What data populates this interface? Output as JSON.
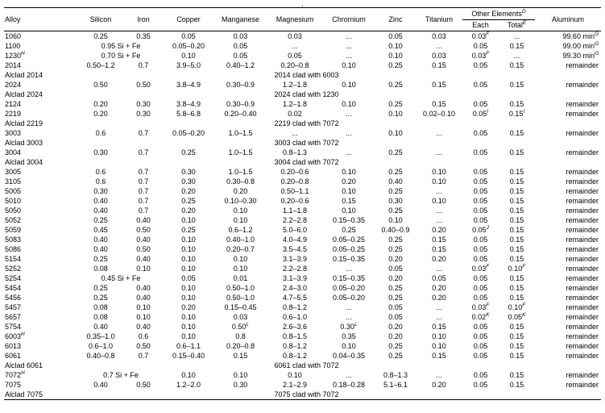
{
  "table": {
    "caption_fragment": ".",
    "headers": {
      "alloy": "Alloy",
      "silicon": "Silicon",
      "iron": "Iron",
      "copper": "Copper",
      "manganese": "Manganese",
      "magnesium": "Magnesium",
      "chromium": "Chromium",
      "zinc": "Zinc",
      "titanium": "Titanium",
      "other_elements": "Other Elements",
      "other_elements_sup": "D",
      "each": "Each",
      "total": "Total",
      "total_sup": "E",
      "aluminum": "Aluminum"
    },
    "rows": [
      {
        "alloy": "1060",
        "values": [
          "0.25",
          "0.35",
          "0.05",
          "0.03",
          "0.03",
          "...",
          "0.05",
          "0.03",
          "0.03^F",
          "..."
        ],
        "al": "99.60 min^G"
      },
      {
        "alloy": "1100",
        "sife": "0.95 Si + Fe",
        "values": [
          "0.05–0.20",
          "0.05",
          "...",
          "...",
          "0.10",
          "...",
          "0.05",
          "0.15"
        ],
        "al": "99.00 min^G"
      },
      {
        "alloy": "1230^H",
        "sife": "0.70 Si + Fe",
        "values": [
          "0.10",
          "0.05",
          "0.05",
          "...",
          "0.10",
          "0.03",
          "0.03^F",
          "..."
        ],
        "al": "99.30 min^G"
      },
      {
        "alloy": "2014",
        "values": [
          "0.50–1.2",
          "0.7",
          "3.9–5.0",
          "0.40–1.2",
          "0.20–0.8",
          "0.10",
          "0.25",
          "0.15",
          "0.05",
          "0.15"
        ],
        "al": "remainder"
      },
      {
        "alloy": "Alclad 2014",
        "clad": "2014 clad with 6003",
        "al": ""
      },
      {
        "alloy": "2024",
        "values": [
          "0.50",
          "0.50",
          "3.8–4.9",
          "0.30–0.9",
          "1.2–1.8",
          "0.10",
          "0.25",
          "0.15",
          "0.05",
          "0.15"
        ],
        "al": "remainder"
      },
      {
        "alloy": "Alclad 2024",
        "clad": "2024 clad with 1230",
        "al": ""
      },
      {
        "alloy": "2124",
        "values": [
          "0.20",
          "0.30",
          "3.8–4.9",
          "0.30–0.9",
          "1.2–1.8",
          "0.10",
          "0.25",
          "0.15",
          "0.05",
          "0.15"
        ],
        "al": "remainder"
      },
      {
        "alloy": "2219",
        "values": [
          "0.20",
          "0.30",
          "5.8–6.8",
          "0.20–0.40",
          "0.02",
          "...",
          "0.10",
          "0.02–0.10",
          "0.05^I",
          "0.15^I"
        ],
        "al": "remainder"
      },
      {
        "alloy": "Alclad 2219",
        "clad": "2219 clad with 7072",
        "al": ""
      },
      {
        "alloy": "3003",
        "values": [
          "0.6",
          "0.7",
          "0.05–0.20",
          "1.0–1.5",
          "...",
          "...",
          "0.10",
          "...",
          "0.05",
          "0.15"
        ],
        "al": "remainder"
      },
      {
        "alloy": "Alclad 3003",
        "clad": "3003 clad with 7072",
        "al": ""
      },
      {
        "alloy": "3004",
        "values": [
          "0.30",
          "0.7",
          "0.25",
          "1.0–1.5",
          "0.8–1.3",
          "...",
          "0.25",
          "...",
          "0.05",
          "0.15"
        ],
        "al": "remainder"
      },
      {
        "alloy": "Alclad 3004",
        "clad": "3004 clad with 7072",
        "al": ""
      },
      {
        "alloy": "3005",
        "values": [
          "0.6",
          "0.7",
          "0.30",
          "1.0–1.5",
          "0.20–0.6",
          "0.10",
          "0.25",
          "0.10",
          "0.05",
          "0.15"
        ],
        "al": "remainder"
      },
      {
        "alloy": "3105",
        "values": [
          "0.6",
          "0.7",
          "0.30",
          "0.30–0.8",
          "0.20–0.8",
          "0.20",
          "0.40",
          "0.10",
          "0.05",
          "0.15"
        ],
        "al": "remainder"
      },
      {
        "alloy": "5005",
        "values": [
          "0.30",
          "0.7",
          "0.20",
          "0.20",
          "0.50–1.1",
          "0.10",
          "0.25",
          "...",
          "0.05",
          "0.15"
        ],
        "al": "remainder"
      },
      {
        "alloy": "5010",
        "values": [
          "0.40",
          "0.7",
          "0.25",
          "0.10–0.30",
          "0.20–0.6",
          "0.15",
          "0.30",
          "0.10",
          "0.05",
          "0.15"
        ],
        "al": "remainder"
      },
      {
        "alloy": "5050",
        "values": [
          "0.40",
          "0.7",
          "0.20",
          "0.10",
          "1.1–1.8",
          "0.10",
          "0.25",
          "...",
          "0.05",
          "0.15"
        ],
        "al": "remainder"
      },
      {
        "alloy": "5052",
        "values": [
          "0.25",
          "0.40",
          "0.10",
          "0.10",
          "2.2–2.8",
          "0.15–0.35",
          "0.10",
          "...",
          "0.05",
          "0.15"
        ],
        "al": "remainder"
      },
      {
        "alloy": "5059",
        "values": [
          "0.45",
          "0.50",
          "0.25",
          "0.6–1.2",
          "5.0–6.0",
          "0.25",
          "0.40–0.9",
          "0.20",
          "0.05^J",
          "0.15"
        ],
        "al": "remainder"
      },
      {
        "alloy": "5083",
        "values": [
          "0.40",
          "0.40",
          "0.10",
          "0.40–1.0",
          "4.0–4.9",
          "0.05–0.25",
          "0.25",
          "0.15",
          "0.05",
          "0.15"
        ],
        "al": "remainder"
      },
      {
        "alloy": "5086",
        "values": [
          "0.40",
          "0.50",
          "0.10",
          "0.20–0.7",
          "3.5–4.5",
          "0.05–0.25",
          "0.25",
          "0.15",
          "0.05",
          "0.15"
        ],
        "al": "remainder"
      },
      {
        "alloy": "5154",
        "values": [
          "0.25",
          "0.40",
          "0.10",
          "0.10",
          "3.1–3.9",
          "0.15–0.35",
          "0.20",
          "0.20",
          "0.05",
          "0.15"
        ],
        "al": "remainder"
      },
      {
        "alloy": "5252",
        "values": [
          "0.08",
          "0.10",
          "0.10",
          "0.10",
          "2.2–2.8",
          "...",
          "0.05",
          "...",
          "0.03^F",
          "0.10^F"
        ],
        "al": "remainder"
      },
      {
        "alloy": "5254",
        "sife": "0.45 Si + Fe",
        "values": [
          "0.05",
          "0.01",
          "3.1–3.9",
          "0.15–0.35",
          "0.20",
          "0.05",
          "0.05",
          "0.15"
        ],
        "al": "remainder"
      },
      {
        "alloy": "5454",
        "values": [
          "0.25",
          "0.40",
          "0.10",
          "0.50–1.0",
          "2.4–3.0",
          "0.05–0.20",
          "0.25",
          "0.20",
          "0.05",
          "0.15"
        ],
        "al": "remainder"
      },
      {
        "alloy": "5456",
        "values": [
          "0.25",
          "0.40",
          "0.10",
          "0.50–1.0",
          "4.7–5.5",
          "0.05–0.20",
          "0.25",
          "0.20",
          "0.05",
          "0.15"
        ],
        "al": "remainder"
      },
      {
        "alloy": "5457",
        "values": [
          "0.08",
          "0.10",
          "0.20",
          "0.15–0.45",
          "0.8–1.2",
          "...",
          "0.05",
          "...",
          "0.03^F",
          "0.10^F"
        ],
        "al": "remainder"
      },
      {
        "alloy": "5657",
        "values": [
          "0.08",
          "0.10",
          "0.10",
          "0.03",
          "0.6–1.0",
          "...",
          "0.05",
          "...",
          "0.02^K",
          "0.05^K"
        ],
        "al": "remainder"
      },
      {
        "alloy": "5754",
        "values": [
          "0.40",
          "0.40",
          "0.10",
          "0.50^L",
          "2.6–3.6",
          "0.30^L",
          "0.20",
          "0.15",
          "0.05",
          "0.15"
        ],
        "al": "remainder"
      },
      {
        "alloy": "6003^H",
        "values": [
          "0.35–1.0",
          "0.6",
          "0.10",
          "0.8",
          "0.8–1.5",
          "0.35",
          "0.20",
          "0.10",
          "0.05",
          "0.15"
        ],
        "al": "remainder"
      },
      {
        "alloy": "6013",
        "values": [
          "0.6–1.0",
          "0.50",
          "0.6–1.1",
          "0.20–0.8",
          "0.8–1.2",
          "0.10",
          "0.25",
          "0.10",
          "0.05",
          "0.15"
        ],
        "al": "remainder"
      },
      {
        "alloy": "6061",
        "values": [
          "0.40–0.8",
          "0.7",
          "0.15–0.40",
          "0.15",
          "0.8–1.2",
          "0.04–0.35",
          "0.25",
          "0.15",
          "0.05",
          "0.15"
        ],
        "al": "remainder"
      },
      {
        "alloy": "Alclad 6061",
        "clad": "6061 clad with 7072",
        "al": ""
      },
      {
        "alloy": "7072^H",
        "sife": "0.7 Si + Fe",
        "values": [
          "0.10",
          "0.10",
          "0.10",
          "...",
          "0.8–1.3",
          "...",
          "0.05",
          "0.15"
        ],
        "al": "remainder"
      },
      {
        "alloy": "7075",
        "values": [
          "0.40",
          "0.50",
          "1.2–2.0",
          "0.30",
          "2.1–2.9",
          "0.18–0.28",
          "5.1–6.1",
          "0.20",
          "0.05",
          "0.15"
        ],
        "al": "remainder"
      },
      {
        "alloy": "Alclad 7075",
        "clad": "7075 clad with 7072",
        "al": ""
      }
    ]
  }
}
